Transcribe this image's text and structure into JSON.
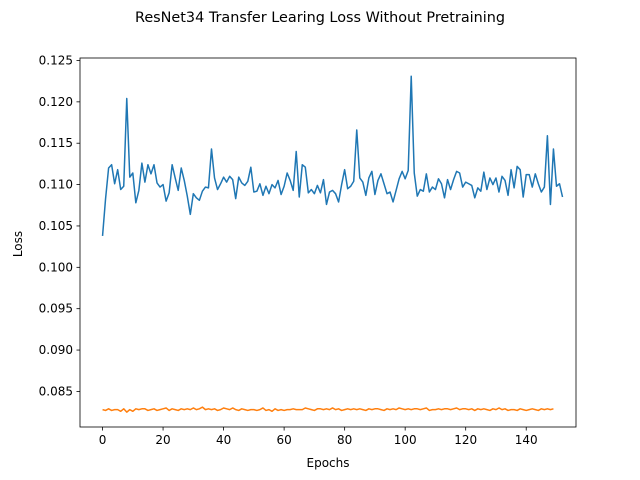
{
  "chart_data": {
    "type": "line",
    "title": "ResNet34 Transfer Learing Loss Without Pretraining",
    "xlabel": "Epochs",
    "ylabel": "Loss",
    "xlim": [
      -7.45,
      156.45
    ],
    "ylim": [
      0.0807,
      0.1253
    ],
    "xticks": [
      0,
      20,
      40,
      60,
      80,
      100,
      120,
      140
    ],
    "xtick_labels": [
      "0",
      "20",
      "40",
      "60",
      "80",
      "100",
      "120",
      "140"
    ],
    "yticks": [
      0.085,
      0.09,
      0.095,
      0.1,
      0.105,
      0.11,
      0.115,
      0.12,
      0.125
    ],
    "ytick_labels": [
      "0.085",
      "0.090",
      "0.095",
      "0.100",
      "0.105",
      "0.110",
      "0.115",
      "0.120",
      "0.125"
    ],
    "grid": false,
    "series": [
      {
        "color": "#1f77b4",
        "values": [
          0.1038,
          0.1083,
          0.112,
          0.1124,
          0.1101,
          0.1118,
          0.1094,
          0.1098,
          0.1204,
          0.1109,
          0.1114,
          0.1078,
          0.1093,
          0.1126,
          0.1103,
          0.1124,
          0.1113,
          0.1124,
          0.1102,
          0.1097,
          0.11,
          0.108,
          0.109,
          0.1124,
          0.1108,
          0.1093,
          0.112,
          0.1105,
          0.1086,
          0.1064,
          0.1089,
          0.1084,
          0.1081,
          0.1092,
          0.1097,
          0.1096,
          0.1143,
          0.1108,
          0.1094,
          0.1101,
          0.1109,
          0.1103,
          0.111,
          0.1106,
          0.1083,
          0.1109,
          0.1102,
          0.1099,
          0.1104,
          0.1121,
          0.1091,
          0.1092,
          0.1101,
          0.1087,
          0.1098,
          0.1089,
          0.11,
          0.1096,
          0.1105,
          0.1088,
          0.1098,
          0.1114,
          0.1105,
          0.1093,
          0.114,
          0.1085,
          0.1124,
          0.1121,
          0.109,
          0.1094,
          0.1089,
          0.1099,
          0.109,
          0.1106,
          0.1076,
          0.1091,
          0.1093,
          0.1089,
          0.1079,
          0.11,
          0.1118,
          0.1095,
          0.1098,
          0.1104,
          0.1166,
          0.1108,
          0.1103,
          0.1087,
          0.1108,
          0.1116,
          0.1088,
          0.1105,
          0.1113,
          0.1101,
          0.1089,
          0.1091,
          0.1079,
          0.1093,
          0.1107,
          0.1116,
          0.1107,
          0.1117,
          0.1231,
          0.1114,
          0.1086,
          0.1094,
          0.1092,
          0.1113,
          0.1091,
          0.1097,
          0.1094,
          0.1107,
          0.1101,
          0.1084,
          0.1106,
          0.1094,
          0.1106,
          0.1116,
          0.1114,
          0.1097,
          0.1103,
          0.1101,
          0.1099,
          0.1084,
          0.1096,
          0.1092,
          0.1115,
          0.1094,
          0.1108,
          0.11,
          0.1108,
          0.1091,
          0.111,
          0.1105,
          0.1087,
          0.1118,
          0.1096,
          0.1122,
          0.1118,
          0.1085,
          0.1112,
          0.1112,
          0.1097,
          0.1113,
          0.1101,
          0.1091,
          0.1097,
          0.1159,
          0.1076,
          0.1143,
          0.1098,
          0.1101,
          0.1085
        ]
      },
      {
        "color": "#ff7f0e",
        "values": [
          0.0828,
          0.0827,
          0.0829,
          0.0827,
          0.0828,
          0.0828,
          0.0826,
          0.0829,
          0.0825,
          0.0828,
          0.0826,
          0.0829,
          0.0828,
          0.0829,
          0.0829,
          0.0827,
          0.0828,
          0.0829,
          0.0827,
          0.0828,
          0.0829,
          0.083,
          0.0827,
          0.0829,
          0.0828,
          0.0827,
          0.0829,
          0.0828,
          0.0829,
          0.0828,
          0.083,
          0.0828,
          0.0829,
          0.0831,
          0.0828,
          0.0829,
          0.0828,
          0.0829,
          0.0827,
          0.0828,
          0.083,
          0.0829,
          0.0828,
          0.083,
          0.0828,
          0.0827,
          0.0829,
          0.0828,
          0.0827,
          0.0828,
          0.0828,
          0.0827,
          0.0828,
          0.083,
          0.0827,
          0.0828,
          0.0826,
          0.0829,
          0.0827,
          0.0828,
          0.0827,
          0.0828,
          0.0828,
          0.0829,
          0.0828,
          0.0828,
          0.0828,
          0.083,
          0.0829,
          0.0828,
          0.0827,
          0.0829,
          0.0829,
          0.0828,
          0.0829,
          0.0828,
          0.083,
          0.0828,
          0.0829,
          0.0827,
          0.0828,
          0.0829,
          0.0828,
          0.0829,
          0.0828,
          0.0829,
          0.0828,
          0.0827,
          0.0829,
          0.0828,
          0.0829,
          0.0829,
          0.0828,
          0.0827,
          0.0829,
          0.0828,
          0.0829,
          0.0828,
          0.083,
          0.0829,
          0.0828,
          0.0829,
          0.0828,
          0.0829,
          0.0829,
          0.0828,
          0.0829,
          0.083,
          0.0827,
          0.0828,
          0.0828,
          0.0829,
          0.0828,
          0.0829,
          0.0829,
          0.0828,
          0.0829,
          0.083,
          0.0828,
          0.0829,
          0.0829,
          0.0828,
          0.0829,
          0.0827,
          0.0829,
          0.0828,
          0.0829,
          0.0828,
          0.0827,
          0.0829,
          0.0828,
          0.083,
          0.0828,
          0.0829,
          0.0827,
          0.0828,
          0.0828,
          0.0827,
          0.0829,
          0.0828,
          0.0827,
          0.0828,
          0.0829,
          0.0828,
          0.0827,
          0.0829,
          0.0828,
          0.0829,
          0.0828,
          0.0829
        ]
      }
    ]
  }
}
